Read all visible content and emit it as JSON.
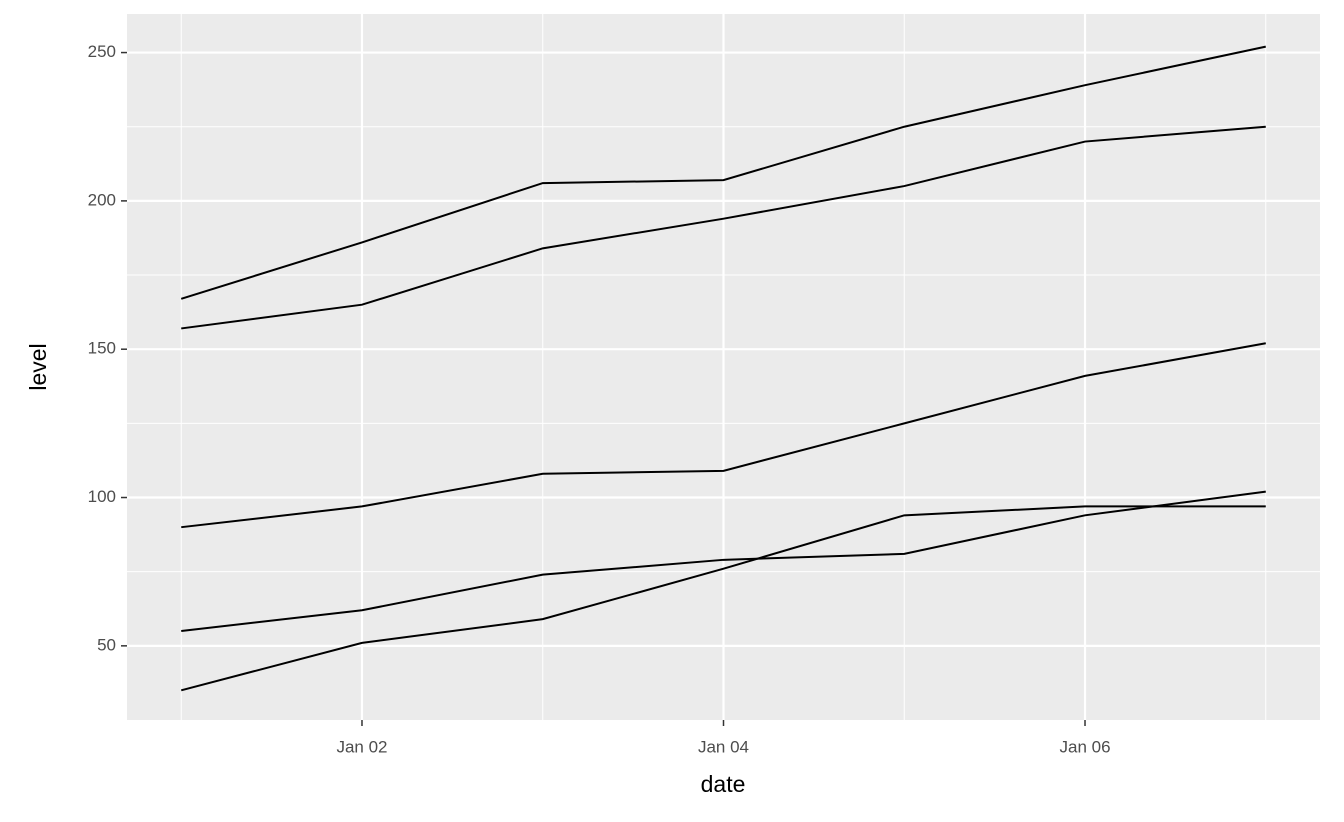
{
  "chart_data": {
    "type": "line",
    "x_label": "date",
    "y_label": "level",
    "categories": [
      null,
      "Jan 02",
      null,
      "Jan 04",
      null,
      "Jan 06",
      null
    ],
    "series": [
      {
        "color": "#000000",
        "values": [
          167,
          186,
          206,
          207,
          225,
          239,
          252
        ]
      },
      {
        "color": "#000000",
        "values": [
          157,
          165,
          184,
          194,
          205,
          220,
          225
        ]
      },
      {
        "color": "#000000",
        "values": [
          90,
          97,
          108,
          109,
          125,
          141,
          152
        ]
      },
      {
        "color": "#000000",
        "values": [
          55,
          62,
          74,
          79,
          81,
          94,
          102
        ]
      },
      {
        "color": "#000000",
        "values": [
          35,
          51,
          59,
          76,
          94,
          97,
          97
        ]
      }
    ],
    "ylim": [
      25,
      263
    ],
    "yticks": [
      50,
      100,
      150,
      200,
      250
    ],
    "y_minor_ticks": [
      75,
      125,
      175,
      225
    ],
    "grid": true,
    "panel_color": "#ebebeb",
    "grid_color": "#ffffff"
  }
}
